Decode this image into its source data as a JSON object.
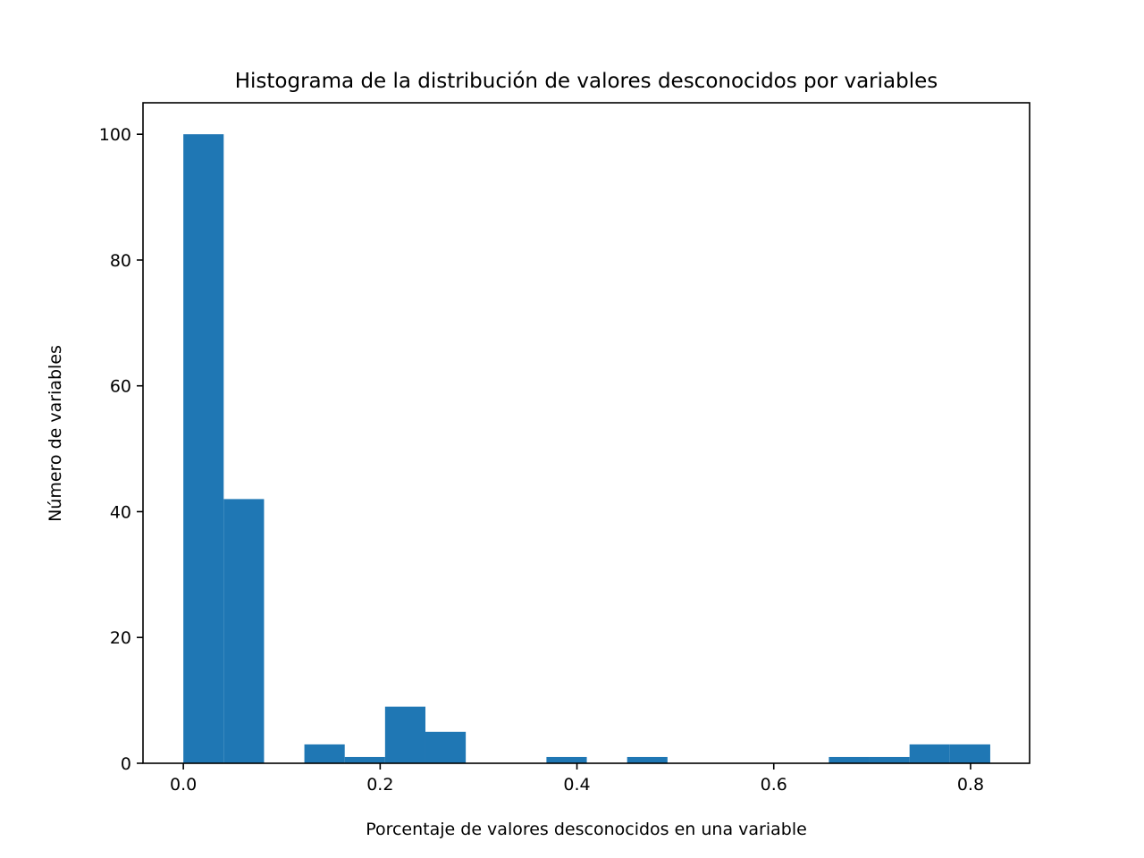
{
  "chart_data": {
    "type": "bar",
    "title": "Histograma de la distribución de valores desconocidos por variables",
    "xlabel": "Porcentaje de valores desconocidos en una variable",
    "ylabel": "Número de variables",
    "xlim": [
      -0.041,
      0.86
    ],
    "ylim": [
      0,
      105
    ],
    "xticks": [
      0.0,
      0.2,
      0.4,
      0.6,
      0.8
    ],
    "xtick_labels": [
      "0.0",
      "0.2",
      "0.4",
      "0.6",
      "0.8"
    ],
    "yticks": [
      0,
      20,
      40,
      60,
      80,
      100
    ],
    "ytick_labels": [
      "0",
      "20",
      "40",
      "60",
      "80",
      "100"
    ],
    "grid": false,
    "legend": "none",
    "bar_color": "#1f77b4",
    "bin_edges": [
      0.0,
      0.041,
      0.082,
      0.123,
      0.164,
      0.205,
      0.246,
      0.287,
      0.328,
      0.369,
      0.41,
      0.451,
      0.492,
      0.533,
      0.574,
      0.615,
      0.656,
      0.697,
      0.738,
      0.779,
      0.82
    ],
    "values": [
      100,
      42,
      0,
      3,
      1,
      9,
      5,
      0,
      0,
      1,
      0,
      1,
      0,
      0,
      0,
      0,
      1,
      1,
      3,
      3
    ]
  }
}
